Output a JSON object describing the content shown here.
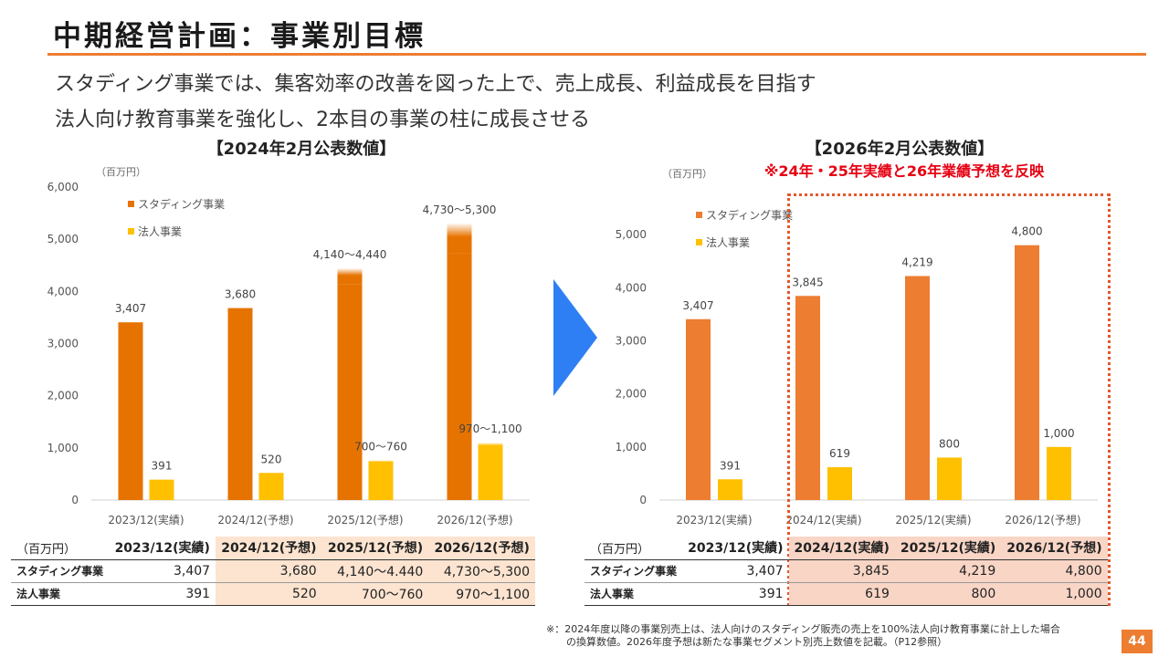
{
  "slide": {
    "title": "中期経営計画：事業別目標",
    "lead1": "スタディング事業では、集客効率の改善を図った上で、売上成長、利益成長を目指す",
    "lead2": "法人向け教育事業を強化し、2本目の事業の柱に成長させる",
    "page_number": "44",
    "footnote_line1": "※：2024年度以降の事業別売上は、法人向けのスタディング販売の売上を100%法人向け教育事業に計上した場合",
    "footnote_line2": "の換算数値。2026年度予想は新たな事業セグメント別売上数値を記載。（P12参照）"
  },
  "colors": {
    "accent": "#ED7D31",
    "studying": "#ED7D31",
    "corporate": "#FFC000",
    "arrow": "#2E7FF3",
    "note_red": "#E60012"
  },
  "chart_data": [
    {
      "type": "bar",
      "title": "【2024年2月公表数値】",
      "unit_label": "（百万円）",
      "categories": [
        "2023/12(実績)",
        "2024/12(予想)",
        "2025/12(予想)",
        "2026/12(予想)"
      ],
      "series": [
        {
          "name": "スタディング事業",
          "color": "#E67300",
          "values": [
            3407,
            3680,
            4290,
            5015
          ],
          "ranges": [
            null,
            null,
            [
              4140,
              4440
            ],
            [
              4730,
              5300
            ]
          ]
        },
        {
          "name": "法人事業",
          "color": "#FFC000",
          "values": [
            391,
            520,
            730,
            1035
          ],
          "ranges": [
            null,
            null,
            [
              700,
              760
            ],
            [
              970,
              1100
            ]
          ]
        }
      ],
      "data_labels": {
        "studying": [
          "3,407",
          "3,680",
          "4,140～4,440",
          "4,730～5,300"
        ],
        "corporate": [
          "391",
          "520",
          "700～760",
          "970～1,100"
        ]
      },
      "ylim": [
        0,
        6000
      ],
      "yticks": [
        0,
        1000,
        2000,
        3000,
        4000,
        5000,
        6000
      ],
      "ytick_labels": [
        "0",
        "1,000",
        "2,000",
        "3,000",
        "4,000",
        "5,000",
        "6,000"
      ],
      "gridlines": false,
      "legend": "top-left"
    },
    {
      "type": "bar",
      "title": "【2026年2月公表数値】",
      "note": "※24年・25年実績と26年業績予想を反映",
      "unit_label": "（百万円）",
      "categories": [
        "2023/12(実績)",
        "2024/12(実績)",
        "2025/12(実績)",
        "2026/12(予想)"
      ],
      "series": [
        {
          "name": "スタディング事業",
          "color": "#ED7D31",
          "values": [
            3407,
            3845,
            4219,
            4800
          ]
        },
        {
          "name": "法人事業",
          "color": "#FFC000",
          "values": [
            391,
            619,
            800,
            1000
          ]
        }
      ],
      "data_labels": {
        "studying": [
          "3,407",
          "3,845",
          "4,219",
          "4,800"
        ],
        "corporate": [
          "391",
          "619",
          "800",
          "1,000"
        ]
      },
      "ylim": [
        0,
        5500
      ],
      "yticks": [
        0,
        1000,
        2000,
        3000,
        4000,
        5000
      ],
      "ytick_labels": [
        "0",
        "1,000",
        "2,000",
        "3,000",
        "4,000",
        "5,000"
      ],
      "gridlines": false,
      "legend": "top-left"
    }
  ],
  "tables": {
    "left": {
      "unit": "（百万円）",
      "headers": [
        "2023/12(実績)",
        "2024/12(予想)",
        "2025/12(予想)",
        "2026/12(予想)"
      ],
      "rows": [
        {
          "label": "スタディング事業",
          "cells": [
            "3,407",
            "3,680",
            "4,140～4.440",
            "4,730～5,300"
          ]
        },
        {
          "label": "法人事業",
          "cells": [
            "391",
            "520",
            "700～760",
            "970～1,100"
          ]
        }
      ]
    },
    "right": {
      "unit": "（百万円）",
      "headers": [
        "2023/12(実績)",
        "2024/12(実績)",
        "2025/12(実績)",
        "2026/12(予想)"
      ],
      "rows": [
        {
          "label": "スタディング事業",
          "cells": [
            "3,407",
            "3,845",
            "4,219",
            "4,800"
          ]
        },
        {
          "label": "法人事業",
          "cells": [
            "391",
            "619",
            "800",
            "1,000"
          ]
        }
      ]
    }
  }
}
